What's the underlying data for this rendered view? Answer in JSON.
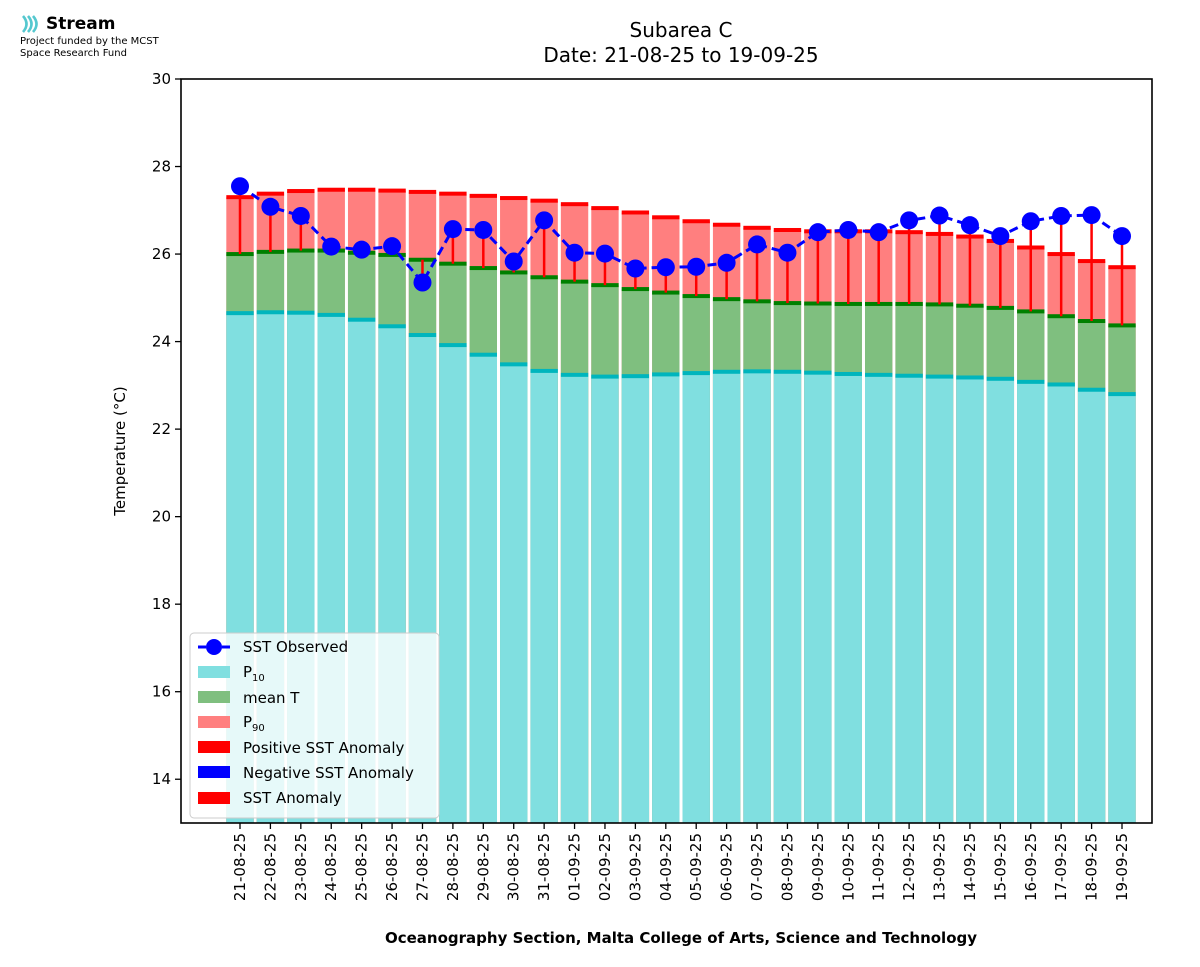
{
  "logo": {
    "brand": "Stream",
    "line1": "Project funded by the MCST",
    "line2": "Space Research Fund"
  },
  "chart_data": {
    "type": "bar",
    "title": "Subarea C",
    "subtitle": "Date: 21-08-25 to 19-09-25",
    "xlabel": "Oceanography Section, Malta College of Arts, Science and Technology",
    "ylabel": "Temperature (°C)",
    "ylim": [
      13,
      30
    ],
    "yticks": [
      14,
      16,
      18,
      20,
      22,
      24,
      26,
      28,
      30
    ],
    "grid": false,
    "legend_position": "bottom-left",
    "colors": {
      "p10": "#80dfe0",
      "p10_edge": "#00b5bd",
      "mean": "#7fbf7f",
      "mean_edge": "#008000",
      "p90": "#ff7f7f",
      "p90_edge": "#ff0000",
      "observed": "#0000ff",
      "anomaly": "#ff0000"
    },
    "categories": [
      "21-08-25",
      "22-08-25",
      "23-08-25",
      "24-08-25",
      "25-08-25",
      "26-08-25",
      "27-08-25",
      "28-08-25",
      "29-08-25",
      "30-08-25",
      "31-08-25",
      "01-09-25",
      "02-09-25",
      "03-09-25",
      "04-09-25",
      "05-09-25",
      "06-09-25",
      "07-09-25",
      "08-09-25",
      "09-09-25",
      "10-09-25",
      "11-09-25",
      "12-09-25",
      "13-09-25",
      "14-09-25",
      "15-09-25",
      "16-09-25",
      "17-09-25",
      "18-09-25",
      "19-09-25"
    ],
    "series": [
      {
        "name": "P10",
        "values": [
          24.65,
          24.67,
          24.66,
          24.61,
          24.5,
          24.35,
          24.15,
          23.92,
          23.7,
          23.48,
          23.33,
          23.24,
          23.2,
          23.21,
          23.25,
          23.28,
          23.31,
          23.32,
          23.31,
          23.29,
          23.26,
          23.24,
          23.22,
          23.2,
          23.18,
          23.15,
          23.08,
          23.02,
          22.9,
          22.8
        ]
      },
      {
        "name": "mean T",
        "values": [
          26.0,
          26.05,
          26.08,
          26.08,
          26.03,
          25.98,
          25.87,
          25.78,
          25.68,
          25.58,
          25.47,
          25.37,
          25.29,
          25.2,
          25.12,
          25.04,
          24.97,
          24.92,
          24.88,
          24.87,
          24.86,
          24.86,
          24.86,
          24.85,
          24.82,
          24.77,
          24.69,
          24.58,
          24.47,
          24.37
        ]
      },
      {
        "name": "P90",
        "values": [
          27.3,
          27.38,
          27.44,
          27.47,
          27.47,
          27.45,
          27.42,
          27.38,
          27.33,
          27.28,
          27.22,
          27.14,
          27.05,
          26.95,
          26.84,
          26.75,
          26.67,
          26.6,
          26.55,
          26.52,
          26.52,
          26.52,
          26.5,
          26.46,
          26.4,
          26.3,
          26.15,
          26.0,
          25.84,
          25.7
        ]
      },
      {
        "name": "SST Observed",
        "values": [
          27.55,
          27.08,
          26.87,
          26.17,
          26.1,
          26.18,
          25.35,
          26.57,
          26.55,
          25.83,
          26.77,
          26.03,
          26.01,
          25.67,
          25.7,
          25.71,
          25.8,
          26.22,
          26.03,
          26.5,
          26.55,
          26.5,
          26.77,
          26.88,
          26.66,
          26.41,
          26.75,
          26.87,
          26.89,
          26.41
        ]
      }
    ],
    "legend": {
      "observed": "SST Observed",
      "p10": "P",
      "p10_sub": "10",
      "mean": "mean T",
      "p90": "P",
      "p90_sub": "90",
      "pos_anomaly": "Positive SST Anomaly",
      "neg_anomaly": "Negative SST Anomaly",
      "anomaly": "SST Anomaly"
    }
  }
}
